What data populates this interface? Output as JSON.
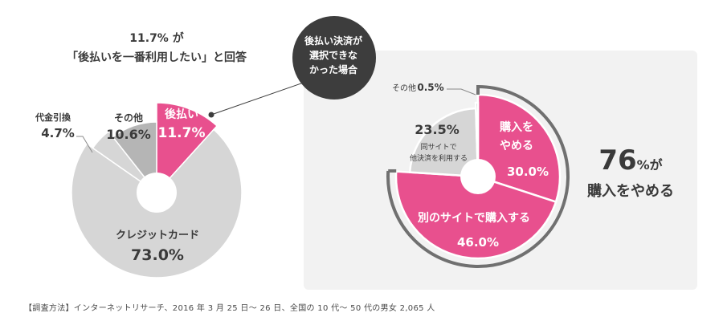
{
  "left_title": {
    "line1": "11.7% が",
    "line2": "「後払いを一番利用したい」と回答"
  },
  "bubble": {
    "line1": "後払い決済が",
    "line2": "選択できな",
    "line3": "かった場合"
  },
  "summary": {
    "number": "76",
    "unit": "%が",
    "line2": "購入をやめる"
  },
  "footnote": "【調査方法】インターネットリサーチ、2016 年 3 月 25 日〜 26 日、全国の 10 代〜 50 代の男女 2,065 人",
  "colors": {
    "pink": "#e8508e",
    "light_gray": "#d6d6d6",
    "mid_gray": "#b5b5b5",
    "dark_gray": "#a3a3a3",
    "dark": "#3d3d3d"
  },
  "chart_data": [
    {
      "type": "pie",
      "categories": [
        "後払い",
        "クレジットカード",
        "代金引換",
        "その他"
      ],
      "values": [
        11.7,
        73.0,
        4.7,
        10.6
      ],
      "labels": [
        "11.7%",
        "73.0%",
        "4.7%",
        "10.6%"
      ]
    },
    {
      "type": "pie",
      "categories": [
        "購入をやめる",
        "別のサイトで購入する",
        "同サイトで他決済を利用する",
        "その他"
      ],
      "values": [
        30.0,
        46.0,
        23.5,
        0.5
      ],
      "labels": [
        "30.0%",
        "46.0%",
        "23.5%",
        "0.5%"
      ]
    }
  ]
}
